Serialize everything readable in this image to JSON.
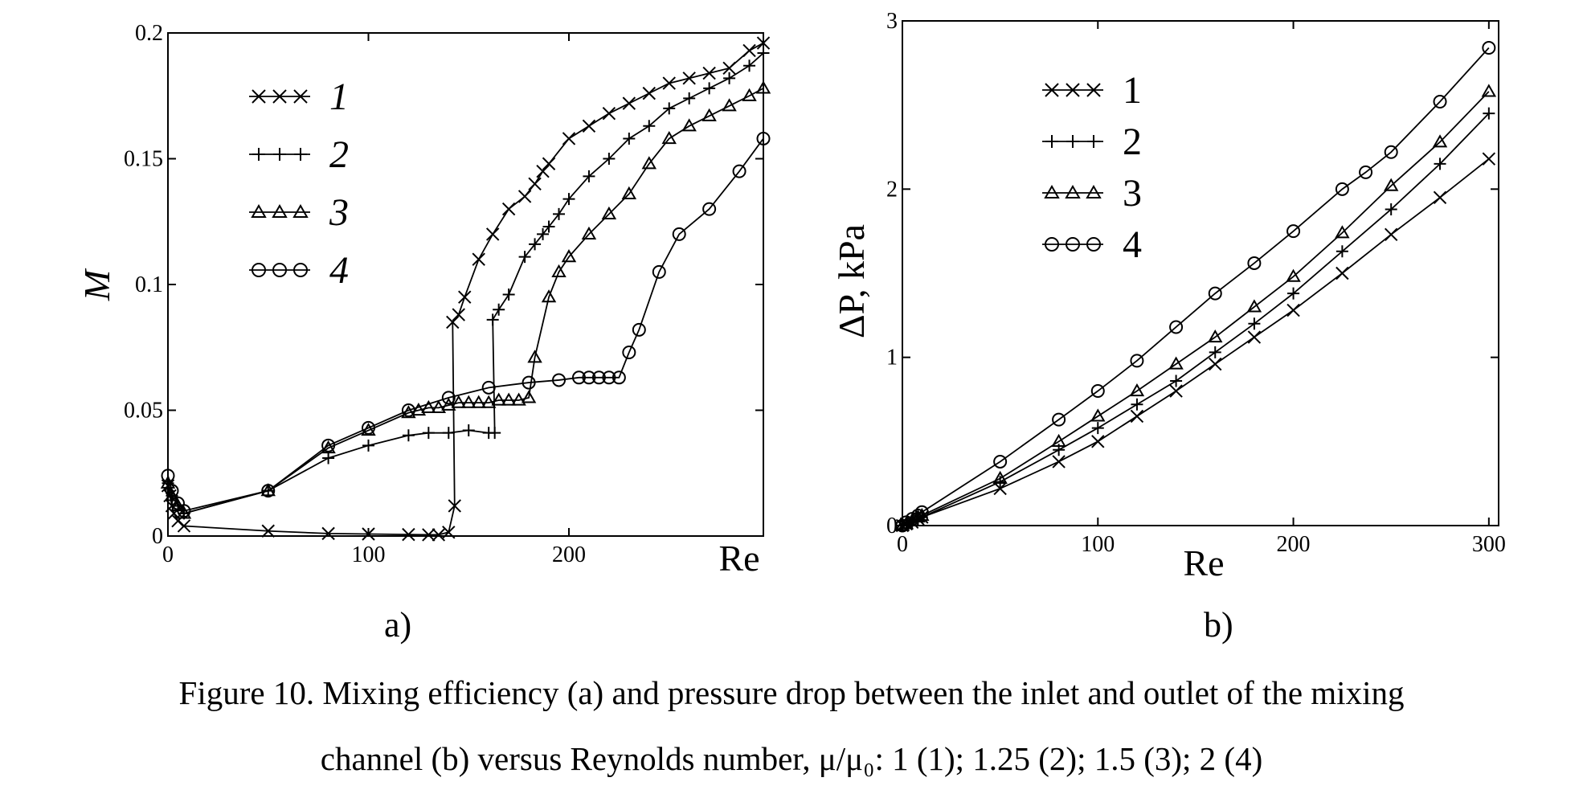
{
  "charts": {
    "a": {
      "panel_label": "a)",
      "xlabel": "Re",
      "ylabel": "M",
      "xlim": [
        0,
        297
      ],
      "ylim": [
        0,
        0.2
      ],
      "xticks": [
        {
          "v": 0,
          "t": "0"
        },
        {
          "v": 100,
          "t": "100"
        },
        {
          "v": 200,
          "t": "200"
        }
      ],
      "yticks": [
        {
          "v": 0,
          "t": "0"
        },
        {
          "v": 0.05,
          "t": "0.05"
        },
        {
          "v": 0.1,
          "t": "0.1"
        },
        {
          "v": 0.15,
          "t": "0.15"
        },
        {
          "v": 0.2,
          "t": "0.2"
        }
      ],
      "legend_italic": true
    },
    "b": {
      "panel_label": "b)",
      "xlabel": "Re",
      "ylabel": "ΔP, kPa",
      "xlim": [
        0,
        305
      ],
      "ylim": [
        0,
        3
      ],
      "xticks": [
        {
          "v": 0,
          "t": "0"
        },
        {
          "v": 100,
          "t": "100"
        },
        {
          "v": 200,
          "t": "200"
        },
        {
          "v": 300,
          "t": "300"
        }
      ],
      "yticks": [
        {
          "v": 0,
          "t": "0"
        },
        {
          "v": 1,
          "t": "1"
        },
        {
          "v": 2,
          "t": "2"
        },
        {
          "v": 3,
          "t": "3"
        }
      ],
      "legend_italic": false
    }
  },
  "caption": {
    "line1": "Figure 10. Mixing efficiency (a) and pressure drop between the inlet and outlet of the mixing",
    "line2": "channel (b) versus Reynolds number, μ/μ₀: 1 (1); 1.25 (2); 1.5 (3); 2 (4)"
  },
  "chart_data": [
    {
      "type": "line",
      "xlabel": "Re",
      "ylabel": "M",
      "xlim": [
        0,
        297
      ],
      "ylim": [
        0,
        0.2
      ],
      "legend_position": "top-left",
      "series": [
        {
          "name": "1",
          "marker": "x",
          "x": [
            0,
            1,
            2,
            3,
            5,
            8,
            50,
            80,
            100,
            120,
            130,
            135,
            140,
            143,
            142,
            145,
            148,
            155,
            162,
            170,
            178,
            183,
            187,
            190,
            200,
            210,
            220,
            230,
            240,
            250,
            260,
            270,
            280,
            290,
            297
          ],
          "y": [
            0.02,
            0.016,
            0.012,
            0.009,
            0.006,
            0.004,
            0.002,
            0.001,
            0.0008,
            0.0006,
            0.0005,
            0.0005,
            0.0015,
            0.012,
            0.085,
            0.088,
            0.095,
            0.11,
            0.12,
            0.13,
            0.135,
            0.14,
            0.145,
            0.148,
            0.158,
            0.163,
            0.168,
            0.172,
            0.176,
            0.18,
            0.182,
            0.184,
            0.186,
            0.193,
            0.196
          ]
        },
        {
          "name": "2",
          "marker": "+",
          "x": [
            0,
            2,
            5,
            8,
            50,
            80,
            100,
            120,
            130,
            140,
            150,
            160,
            163,
            162,
            165,
            170,
            178,
            183,
            187,
            190,
            195,
            200,
            210,
            220,
            230,
            240,
            250,
            260,
            270,
            280,
            290,
            297
          ],
          "y": [
            0.021,
            0.016,
            0.012,
            0.009,
            0.018,
            0.031,
            0.036,
            0.04,
            0.041,
            0.041,
            0.042,
            0.041,
            0.041,
            0.086,
            0.09,
            0.096,
            0.111,
            0.116,
            0.12,
            0.123,
            0.128,
            0.134,
            0.143,
            0.15,
            0.158,
            0.163,
            0.17,
            0.174,
            0.178,
            0.182,
            0.187,
            0.192
          ]
        },
        {
          "name": "3",
          "marker": "triangle",
          "x": [
            0,
            2,
            5,
            8,
            50,
            80,
            100,
            120,
            125,
            130,
            135,
            140,
            145,
            150,
            155,
            160,
            165,
            170,
            175,
            180,
            183,
            190,
            195,
            200,
            210,
            220,
            230,
            240,
            250,
            260,
            270,
            280,
            290,
            297
          ],
          "y": [
            0.021,
            0.016,
            0.012,
            0.009,
            0.018,
            0.035,
            0.042,
            0.049,
            0.05,
            0.051,
            0.051,
            0.052,
            0.053,
            0.053,
            0.053,
            0.053,
            0.054,
            0.054,
            0.054,
            0.055,
            0.071,
            0.095,
            0.105,
            0.111,
            0.12,
            0.128,
            0.136,
            0.148,
            0.158,
            0.163,
            0.167,
            0.171,
            0.175,
            0.178
          ]
        },
        {
          "name": "4",
          "marker": "circle",
          "x": [
            0,
            2,
            5,
            8,
            50,
            80,
            100,
            120,
            140,
            160,
            180,
            195,
            205,
            210,
            215,
            220,
            225,
            230,
            235,
            245,
            255,
            270,
            285,
            297
          ],
          "y": [
            0.024,
            0.018,
            0.013,
            0.01,
            0.018,
            0.036,
            0.043,
            0.05,
            0.055,
            0.059,
            0.061,
            0.062,
            0.063,
            0.063,
            0.063,
            0.063,
            0.063,
            0.073,
            0.082,
            0.105,
            0.12,
            0.13,
            0.145,
            0.158
          ]
        }
      ]
    },
    {
      "type": "line",
      "xlabel": "Re",
      "ylabel": "ΔP, kPa",
      "xlim": [
        0,
        305
      ],
      "ylim": [
        0,
        3
      ],
      "legend_position": "top-left",
      "series": [
        {
          "name": "1",
          "marker": "x",
          "x": [
            0,
            2,
            5,
            8,
            10,
            50,
            80,
            100,
            120,
            140,
            160,
            180,
            200,
            225,
            250,
            275,
            300
          ],
          "y": [
            0,
            0.01,
            0.02,
            0.04,
            0.05,
            0.22,
            0.38,
            0.5,
            0.65,
            0.8,
            0.96,
            1.12,
            1.28,
            1.5,
            1.73,
            1.95,
            2.18
          ]
        },
        {
          "name": "2",
          "marker": "+",
          "x": [
            0,
            2,
            5,
            8,
            10,
            50,
            80,
            100,
            120,
            140,
            160,
            180,
            200,
            225,
            250,
            275,
            300
          ],
          "y": [
            0,
            0.01,
            0.02,
            0.04,
            0.05,
            0.26,
            0.45,
            0.58,
            0.72,
            0.86,
            1.03,
            1.2,
            1.38,
            1.63,
            1.88,
            2.15,
            2.45
          ]
        },
        {
          "name": "3",
          "marker": "triangle",
          "x": [
            0,
            2,
            5,
            8,
            10,
            50,
            80,
            100,
            120,
            140,
            160,
            180,
            200,
            225,
            250,
            275,
            300
          ],
          "y": [
            0,
            0.01,
            0.03,
            0.05,
            0.06,
            0.28,
            0.5,
            0.65,
            0.8,
            0.96,
            1.12,
            1.3,
            1.48,
            1.74,
            2.02,
            2.28,
            2.58
          ]
        },
        {
          "name": "4",
          "marker": "circle",
          "x": [
            0,
            2,
            5,
            8,
            10,
            50,
            80,
            100,
            120,
            140,
            160,
            180,
            200,
            225,
            237,
            250,
            275,
            300
          ],
          "y": [
            0,
            0.02,
            0.04,
            0.06,
            0.08,
            0.38,
            0.63,
            0.8,
            0.98,
            1.18,
            1.38,
            1.56,
            1.75,
            2.0,
            2.1,
            2.22,
            2.52,
            2.84
          ]
        }
      ]
    }
  ]
}
